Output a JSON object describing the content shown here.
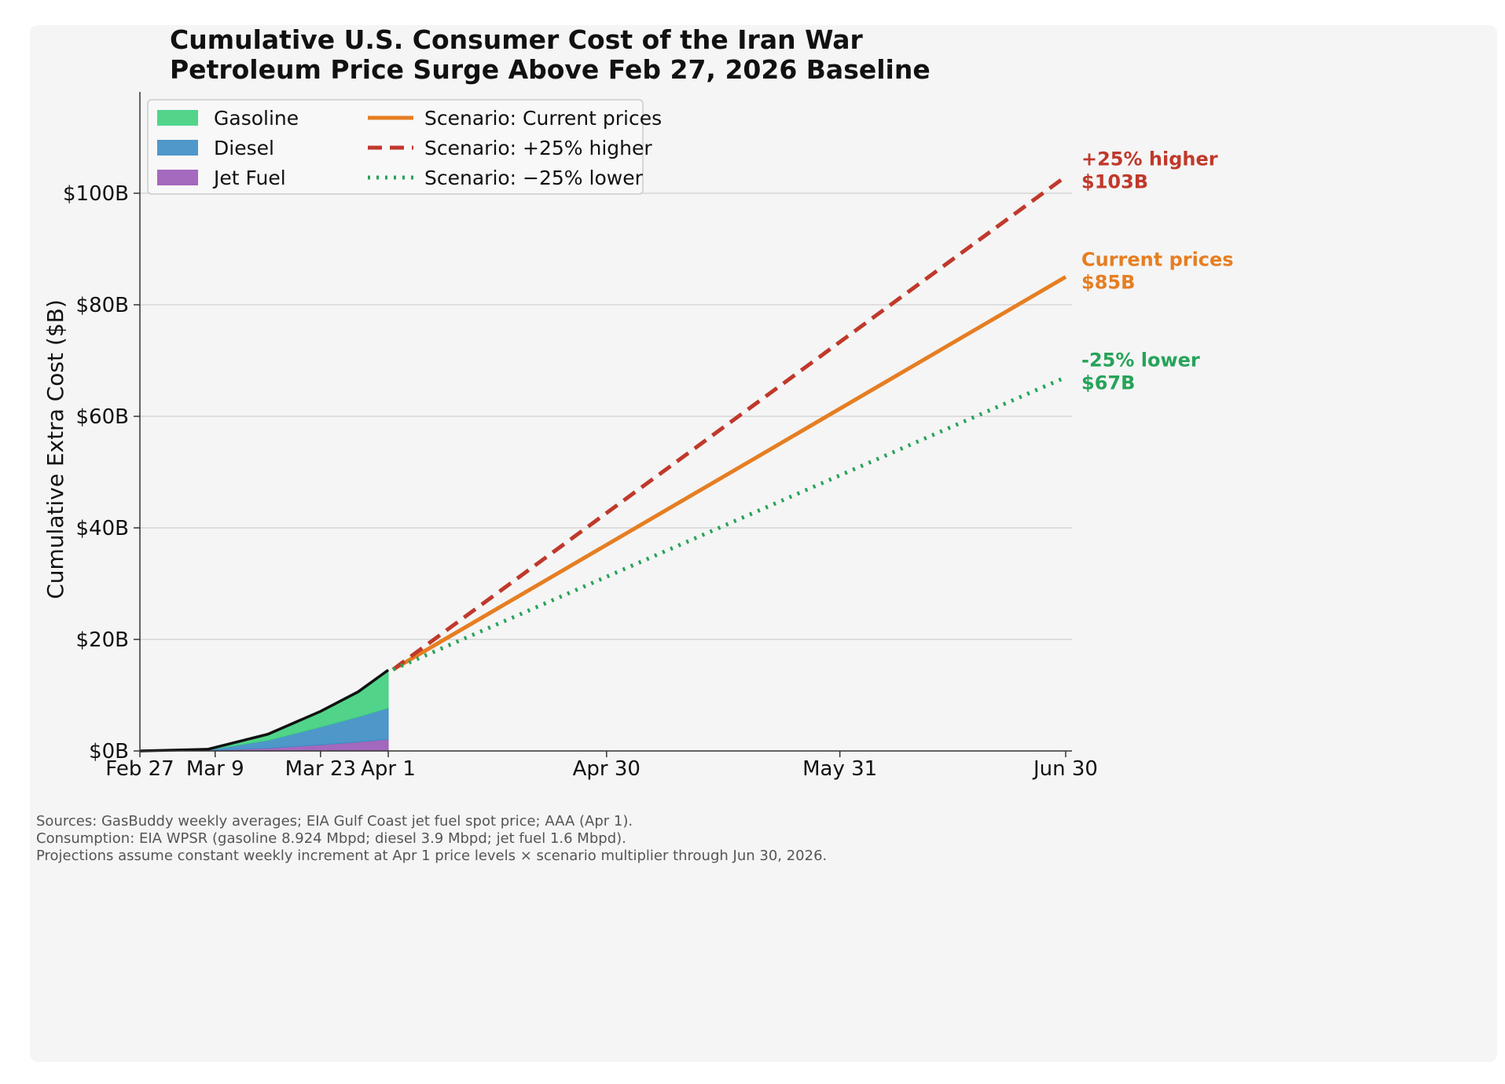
{
  "chart_data": {
    "type": "area",
    "title_lines": [
      "Cumulative U.S. Consumer Cost of the Iran War",
      "Petroleum Price Surge Above Feb 27, 2026 Baseline"
    ],
    "xlabel": "",
    "ylabel": "Cumulative Extra Cost ($B)",
    "ylim": [
      0,
      118
    ],
    "grid": "horizontal",
    "legend_position": "top-left",
    "x_ticks": [
      {
        "label": "Feb 27",
        "date": "2026-02-27"
      },
      {
        "label": "Mar 9",
        "date": "2026-03-09"
      },
      {
        "label": "Mar 23",
        "date": "2026-03-23"
      },
      {
        "label": "Apr 1",
        "date": "2026-04-01"
      },
      {
        "label": "Apr 30",
        "date": "2026-04-30"
      },
      {
        "label": "May 31",
        "date": "2026-05-31"
      },
      {
        "label": "Jun 30",
        "date": "2026-06-30"
      }
    ],
    "y_ticks": [
      {
        "label": "$0B",
        "value": 0
      },
      {
        "label": "$20B",
        "value": 20
      },
      {
        "label": "$40B",
        "value": 40
      },
      {
        "label": "$60B",
        "value": 60
      },
      {
        "label": "$80B",
        "value": 80
      },
      {
        "label": "$100B",
        "value": 100
      }
    ],
    "actual_dates": [
      "2026-02-27",
      "2026-03-08",
      "2026-03-16",
      "2026-03-23",
      "2026-03-28",
      "2026-04-01"
    ],
    "stacked_series": [
      {
        "name": "Jet Fuel",
        "color": "#9b59b6",
        "values": [
          0,
          0.1,
          0.5,
          1.1,
          1.6,
          2.1
        ]
      },
      {
        "name": "Diesel",
        "color": "#3c8dc4",
        "values": [
          0,
          0.1,
          1.4,
          3.2,
          4.5,
          5.6
        ]
      },
      {
        "name": "Gasoline",
        "color": "#3fd07e",
        "values": [
          0,
          0.1,
          1.1,
          2.8,
          4.5,
          6.8
        ]
      }
    ],
    "total_line_color": "#111111",
    "scenarios": [
      {
        "name": "Scenario: Current prices",
        "color": "#e67e22",
        "dash": "solid",
        "x": [
          "2026-04-01",
          "2026-06-30"
        ],
        "y": [
          14.6,
          85
        ],
        "end_label": "Current prices",
        "end_value": "$85B"
      },
      {
        "name": "Scenario: +25% higher",
        "color": "#c0392b",
        "dash": "dashed",
        "x": [
          "2026-04-01",
          "2026-06-30"
        ],
        "y": [
          14.6,
          103
        ],
        "end_label": "+25% higher",
        "end_value": "$103B"
      },
      {
        "name": "Scenario: −25% lower",
        "color": "#27a35a",
        "dash": "dotted",
        "x": [
          "2026-04-01",
          "2026-06-30"
        ],
        "y": [
          14.6,
          67
        ],
        "end_label": "-25% lower",
        "end_value": "$67B"
      }
    ],
    "legend": [
      {
        "label": "Gasoline",
        "kind": "patch",
        "color": "#3fd07e"
      },
      {
        "label": "Diesel",
        "kind": "patch",
        "color": "#3c8dc4"
      },
      {
        "label": "Jet Fuel",
        "kind": "patch",
        "color": "#9b59b6"
      },
      {
        "label": "Scenario: Current prices",
        "kind": "solid",
        "color": "#e67e22"
      },
      {
        "label": "Scenario: +25% higher",
        "kind": "dashed",
        "color": "#c0392b"
      },
      {
        "label": "Scenario: −25% lower",
        "kind": "dotted",
        "color": "#27a35a"
      }
    ],
    "source_lines": [
      "Sources: GasBuddy weekly averages; EIA Gulf Coast jet fuel spot price; AAA (Apr 1).",
      "Consumption: EIA WPSR (gasoline 8.924 Mbpd; diesel 3.9 Mbpd; jet fuel 1.6 Mbpd).",
      "Projections assume constant weekly increment at Apr 1 price levels × scenario multiplier through Jun 30, 2026."
    ]
  }
}
